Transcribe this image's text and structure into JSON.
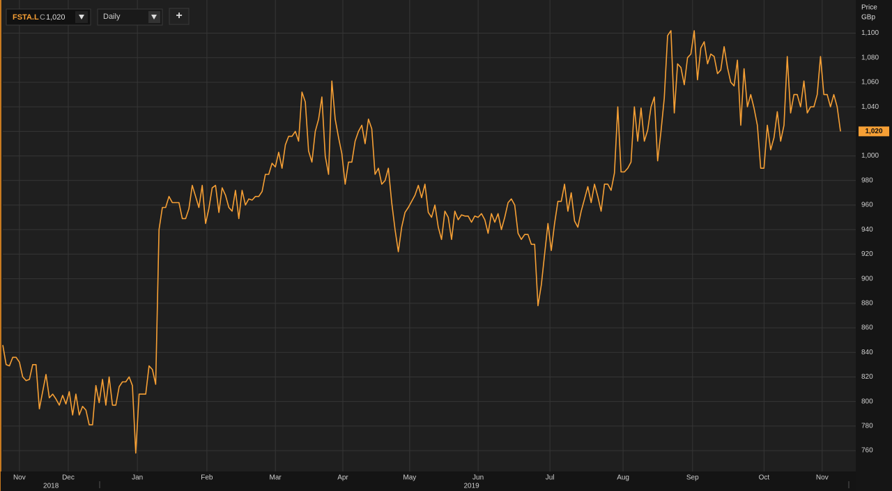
{
  "toolbar": {
    "symbol": "FSTA.L",
    "close_prefix": "C",
    "close": "1,020",
    "interval": "Daily",
    "add": "+"
  },
  "chart_data": {
    "type": "line",
    "axis_title": [
      "Price",
      "GBp"
    ],
    "color": "#f7a035",
    "grid": true,
    "values": [
      846,
      830,
      829,
      836,
      836,
      832,
      820,
      817,
      818,
      830,
      830,
      794,
      808,
      822,
      803,
      806,
      802,
      797,
      805,
      798,
      808,
      789,
      806,
      789,
      796,
      793,
      781,
      781,
      813,
      799,
      818,
      797,
      820,
      797,
      797,
      812,
      816,
      816,
      820,
      813,
      758,
      806,
      806,
      806,
      829,
      826,
      814,
      940,
      958,
      958,
      967,
      962,
      962,
      962,
      949,
      949,
      957,
      976,
      967,
      958,
      976,
      945,
      957,
      974,
      976,
      954,
      974,
      968,
      958,
      955,
      972,
      949,
      972,
      960,
      965,
      964,
      967,
      967,
      971,
      985,
      985,
      994,
      991,
      1003,
      990,
      1009,
      1016,
      1016,
      1020,
      1012,
      1052,
      1044,
      1004,
      995,
      1020,
      1030,
      1048,
      1000,
      985,
      1061,
      1030,
      1015,
      1002,
      977,
      995,
      995,
      1012,
      1020,
      1025,
      1010,
      1030,
      1022,
      985,
      990,
      977,
      980,
      990,
      962,
      940,
      922,
      942,
      954,
      958,
      963,
      968,
      976,
      966,
      977,
      954,
      950,
      960,
      942,
      932,
      955,
      950,
      932,
      955,
      948,
      952,
      951,
      951,
      946,
      951,
      950,
      953,
      948,
      937,
      953,
      946,
      953,
      940,
      950,
      962,
      965,
      960,
      937,
      932,
      936,
      936,
      928,
      928,
      878,
      895,
      920,
      945,
      923,
      945,
      963,
      963,
      977,
      955,
      970,
      947,
      942,
      955,
      965,
      975,
      962,
      977,
      967,
      955,
      977,
      977,
      972,
      986,
      1040,
      987,
      987,
      990,
      995,
      1040,
      1012,
      1039,
      1012,
      1021,
      1040,
      1048,
      996,
      1020,
      1047,
      1098,
      1102,
      1035,
      1075,
      1072,
      1058,
      1080,
      1083,
      1102,
      1062,
      1088,
      1093,
      1075,
      1083,
      1081,
      1067,
      1070,
      1089,
      1072,
      1060,
      1057,
      1078,
      1025,
      1071,
      1040,
      1050,
      1039,
      1025,
      990,
      990,
      1025,
      1005,
      1015,
      1036,
      1012,
      1025,
      1081,
      1035,
      1050,
      1050,
      1040,
      1061,
      1035,
      1040,
      1040,
      1050,
      1081,
      1050,
      1050,
      1040,
      1050,
      1040,
      1020
    ],
    "last_label": "1,020",
    "xlim": [
      0,
      256.6
    ],
    "xticks": [
      {
        "value": 5,
        "label": "Nov"
      },
      {
        "value": 19.7,
        "label": "Dec"
      },
      {
        "value": 40.5,
        "label": "Jan"
      },
      {
        "value": 61.4,
        "label": "Feb"
      },
      {
        "value": 82,
        "label": "Mar"
      },
      {
        "value": 102.3,
        "label": "Apr"
      },
      {
        "value": 122.4,
        "label": "May"
      },
      {
        "value": 143,
        "label": "Jun"
      },
      {
        "value": 164.6,
        "label": "Jul"
      },
      {
        "value": 186.6,
        "label": "Aug"
      },
      {
        "value": 207.5,
        "label": "Sep"
      },
      {
        "value": 229,
        "label": "Oct"
      },
      {
        "value": 246.5,
        "label": "Nov"
      }
    ],
    "year_labels": [
      {
        "value": 14.5,
        "label": "2018"
      },
      {
        "value": 141,
        "label": "2019"
      }
    ],
    "ylim": [
      743,
      1127
    ],
    "yticks": [
      760,
      780,
      800,
      820,
      840,
      860,
      880,
      900,
      920,
      940,
      960,
      980,
      {
        "value": 1000,
        "label": "1,000"
      },
      {
        "value": 1020,
        "label": "1,020"
      },
      {
        "value": 1040,
        "label": "1,040"
      },
      {
        "value": 1060,
        "label": "1,060"
      },
      {
        "value": 1080,
        "label": "1,080"
      },
      {
        "value": 1100,
        "label": "1,100"
      }
    ]
  }
}
